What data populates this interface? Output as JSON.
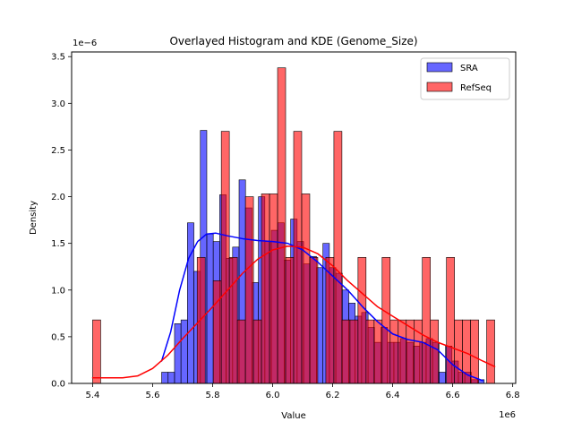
{
  "chart_data": {
    "type": "bar",
    "title": "Overlayed Histogram and KDE (Genome_Size)",
    "xlabel": "Value",
    "ylabel": "Density",
    "x_multiplier": "1e6",
    "y_multiplier": "1e−6",
    "xlim": [
      5.33,
      6.81
    ],
    "ylim": [
      0,
      3.55
    ],
    "x_ticks": [
      "5.4",
      "5.6",
      "5.8",
      "6.0",
      "6.2",
      "6.4",
      "6.6",
      "6.8"
    ],
    "y_ticks": [
      "0.0",
      "0.5",
      "1.0",
      "1.5",
      "2.0",
      "2.5",
      "3.0",
      "3.5"
    ],
    "legend": {
      "position": "top-right",
      "entries": [
        "SRA",
        "RefSeq"
      ]
    },
    "colors": {
      "SRA": "#0000ff",
      "RefSeq": "#ff0000"
    },
    "series": [
      {
        "name": "SRA",
        "kind": "histogram",
        "bin_edges": [
          5.63,
          5.6515,
          5.673,
          5.6945,
          5.716,
          5.7375,
          5.759,
          5.7805,
          5.802,
          5.8235,
          5.845,
          5.8665,
          5.888,
          5.9095,
          5.931,
          5.9525,
          5.974,
          5.9955,
          6.017,
          6.0385,
          6.06,
          6.0815,
          6.103,
          6.1245,
          6.146,
          6.1675,
          6.189,
          6.2105,
          6.232,
          6.2535,
          6.275,
          6.2965,
          6.318,
          6.3395,
          6.361,
          6.3825,
          6.404,
          6.4255,
          6.447,
          6.4685,
          6.49,
          6.5115,
          6.533,
          6.5545,
          6.576,
          6.5975,
          6.619,
          6.6405,
          6.662,
          6.6835,
          6.705
        ],
        "densities": [
          0.12,
          0.12,
          0.64,
          0.68,
          1.72,
          1.2,
          2.71,
          1.6,
          1.52,
          2.02,
          1.34,
          1.46,
          2.18,
          1.88,
          1.08,
          2.0,
          1.52,
          1.64,
          1.72,
          1.32,
          1.76,
          1.52,
          1.28,
          1.36,
          1.24,
          1.5,
          1.24,
          1.18,
          1.0,
          0.86,
          0.72,
          0.76,
          0.6,
          0.44,
          0.6,
          0.44,
          0.44,
          0.48,
          0.44,
          0.4,
          0.44,
          0.48,
          0.44,
          0.12,
          0.4,
          0.24,
          0.12,
          0.12,
          0.04,
          0.04
        ]
      },
      {
        "name": "RefSeq",
        "kind": "histogram",
        "bin_edges": [
          5.4,
          5.4268,
          5.4536,
          5.4804,
          5.5072,
          5.534,
          5.5608,
          5.5876,
          5.6144,
          5.6412,
          5.668,
          5.6948,
          5.7216,
          5.7484,
          5.7752,
          5.802,
          5.8288,
          5.8556,
          5.8824,
          5.9092,
          5.936,
          5.9628,
          5.9896,
          6.0164,
          6.0432,
          6.07,
          6.0968,
          6.1236,
          6.1504,
          6.1772,
          6.204,
          6.2308,
          6.2576,
          6.2844,
          6.3112,
          6.338,
          6.3648,
          6.3916,
          6.4184,
          6.4452,
          6.472,
          6.4988,
          6.5256,
          6.5524,
          6.5792,
          6.606,
          6.6328,
          6.6596,
          6.6864,
          6.7132,
          6.74
        ],
        "densities": [
          0.68,
          0,
          0,
          0,
          0,
          0,
          0,
          0,
          0,
          0,
          0,
          0,
          0,
          1.35,
          0,
          1.1,
          2.7,
          1.35,
          0.68,
          2.0,
          0.68,
          2.03,
          2.03,
          3.38,
          1.35,
          2.7,
          2.03,
          1.35,
          0,
          1.35,
          2.7,
          0.68,
          0.68,
          1.35,
          0.68,
          0.68,
          1.35,
          0.68,
          0.68,
          0.68,
          0.68,
          1.35,
          0.68,
          0,
          1.35,
          0.68,
          0.68,
          0.68,
          0,
          0.68
        ]
      },
      {
        "name": "SRA",
        "kind": "kde",
        "x": [
          5.63,
          5.66,
          5.69,
          5.72,
          5.75,
          5.78,
          5.81,
          5.85,
          5.9,
          5.95,
          6.0,
          6.05,
          6.1,
          6.15,
          6.2,
          6.25,
          6.3,
          6.35,
          6.4,
          6.45,
          6.5,
          6.55,
          6.6,
          6.65,
          6.7
        ],
        "y": [
          0.24,
          0.55,
          1.0,
          1.34,
          1.52,
          1.6,
          1.61,
          1.58,
          1.55,
          1.53,
          1.52,
          1.5,
          1.43,
          1.3,
          1.15,
          1.0,
          0.82,
          0.66,
          0.53,
          0.47,
          0.44,
          0.36,
          0.2,
          0.09,
          0.03
        ]
      },
      {
        "name": "RefSeq",
        "kind": "kde",
        "x": [
          5.4,
          5.45,
          5.5,
          5.55,
          5.6,
          5.65,
          5.7,
          5.75,
          5.8,
          5.85,
          5.9,
          5.95,
          6.0,
          6.05,
          6.1,
          6.15,
          6.2,
          6.25,
          6.3,
          6.35,
          6.4,
          6.45,
          6.5,
          6.55,
          6.6,
          6.65,
          6.7,
          6.74
        ],
        "y": [
          0.06,
          0.06,
          0.06,
          0.08,
          0.16,
          0.3,
          0.48,
          0.65,
          0.82,
          1.0,
          1.18,
          1.33,
          1.43,
          1.47,
          1.46,
          1.39,
          1.26,
          1.1,
          0.96,
          0.82,
          0.72,
          0.62,
          0.52,
          0.44,
          0.38,
          0.32,
          0.24,
          0.18
        ]
      }
    ]
  }
}
